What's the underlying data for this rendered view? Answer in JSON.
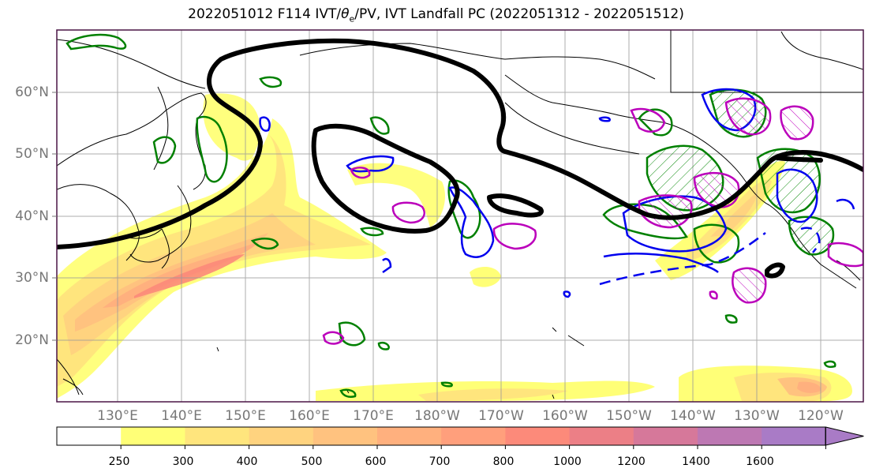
{
  "title_parts": {
    "prefix": "2022051012 F114 IVT/",
    "theta": "θ",
    "subscript": "e",
    "suffix": "/PV, IVT Landfall PC (2022051312 - 2022051512)"
  },
  "lat_labels": [
    "60°N",
    "50°N",
    "40°N",
    "30°N",
    "20°N"
  ],
  "lon_labels": [
    "130°E",
    "140°E",
    "150°E",
    "160°E",
    "170°E",
    "180°W",
    "170°W",
    "160°W",
    "150°W",
    "140°W",
    "130°W",
    "120°W"
  ],
  "colorbar": {
    "ticks": [
      "250",
      "300",
      "400",
      "500",
      "600",
      "700",
      "800",
      "1000",
      "1200",
      "1400",
      "1600"
    ],
    "colors": [
      "#ffffff",
      "#ffff77",
      "#ffe57d",
      "#ffd37f",
      "#ffc27f",
      "#ffb07e",
      "#ff9f7c",
      "#fc8a7a",
      "#ec7f86",
      "#d6789a",
      "#bd78b3",
      "#a97bc6"
    ]
  },
  "contour_colors": {
    "ivt_landfall_pc": "#000000",
    "theta_e": "#0000ff",
    "pv": "#cc00cc",
    "green": "#008000"
  }
}
